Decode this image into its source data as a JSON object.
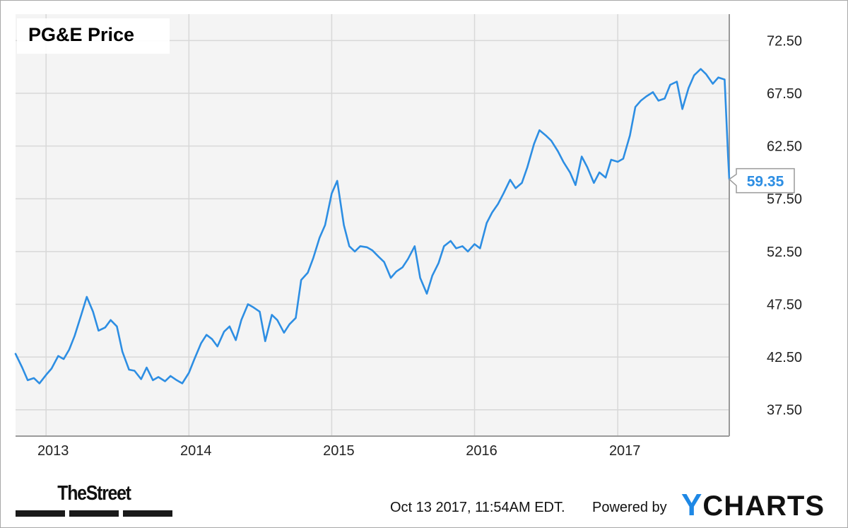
{
  "chart_data": {
    "type": "line",
    "title": "PG&E Price",
    "xlabel": "",
    "ylabel": "",
    "x_tick_labels": [
      "2013",
      "2014",
      "2015",
      "2016",
      "2017"
    ],
    "y_tick_labels": [
      "72.50",
      "67.50",
      "62.50",
      "57.50",
      "52.50",
      "47.50",
      "42.50",
      "37.50"
    ],
    "y_ticks": [
      72.5,
      67.5,
      62.5,
      57.5,
      52.5,
      47.5,
      42.5,
      37.5
    ],
    "ylim": [
      35.0,
      75.0
    ],
    "xlim": [
      "2012-10-15",
      "2017-10-13"
    ],
    "grid": true,
    "line_color": "#2d8ee3",
    "last_value_label": "59.35",
    "series": [
      {
        "x": [
          "2012-10-15",
          "2012-11-01",
          "2012-11-15",
          "2012-12-01",
          "2012-12-15",
          "2013-01-01",
          "2013-01-15",
          "2013-02-01",
          "2013-02-15",
          "2013-03-01",
          "2013-03-15",
          "2013-04-01",
          "2013-04-15",
          "2013-05-01",
          "2013-05-15",
          "2013-06-01",
          "2013-06-15",
          "2013-07-01",
          "2013-07-15",
          "2013-08-01",
          "2013-08-15",
          "2013-09-01",
          "2013-09-15",
          "2013-10-01",
          "2013-10-15",
          "2013-11-01",
          "2013-11-15",
          "2013-12-01",
          "2013-12-15",
          "2014-01-01",
          "2014-01-15",
          "2014-02-01",
          "2014-02-15",
          "2014-03-01",
          "2014-03-15",
          "2014-04-01",
          "2014-04-15",
          "2014-05-01",
          "2014-05-15",
          "2014-06-01",
          "2014-06-15",
          "2014-07-01",
          "2014-07-15",
          "2014-08-01",
          "2014-08-15",
          "2014-09-01",
          "2014-09-15",
          "2014-10-01",
          "2014-10-15",
          "2014-11-01",
          "2014-11-15",
          "2014-12-01",
          "2014-12-15",
          "2015-01-01",
          "2015-01-15",
          "2015-02-01",
          "2015-02-15",
          "2015-03-01",
          "2015-03-15",
          "2015-04-01",
          "2015-04-15",
          "2015-05-01",
          "2015-05-15",
          "2015-06-01",
          "2015-06-15",
          "2015-07-01",
          "2015-07-15",
          "2015-08-01",
          "2015-08-15",
          "2015-09-01",
          "2015-09-15",
          "2015-10-01",
          "2015-10-15",
          "2015-11-01",
          "2015-11-15",
          "2015-12-01",
          "2015-12-15",
          "2016-01-01",
          "2016-01-15",
          "2016-02-01",
          "2016-02-15",
          "2016-03-01",
          "2016-03-15",
          "2016-04-01",
          "2016-04-15",
          "2016-05-01",
          "2016-05-15",
          "2016-06-01",
          "2016-06-15",
          "2016-07-01",
          "2016-07-15",
          "2016-08-01",
          "2016-08-15",
          "2016-09-01",
          "2016-09-15",
          "2016-10-01",
          "2016-10-15",
          "2016-11-01",
          "2016-11-15",
          "2016-12-01",
          "2016-12-15",
          "2017-01-01",
          "2017-01-15",
          "2017-02-01",
          "2017-02-15",
          "2017-03-01",
          "2017-03-15",
          "2017-04-01",
          "2017-04-15",
          "2017-05-01",
          "2017-05-15",
          "2017-06-01",
          "2017-06-15",
          "2017-07-01",
          "2017-07-15",
          "2017-08-01",
          "2017-08-15",
          "2017-09-01",
          "2017-09-15",
          "2017-10-01",
          "2017-10-10",
          "2017-10-13"
        ],
        "y": [
          42.8,
          41.5,
          40.3,
          40.5,
          40.0,
          40.8,
          41.4,
          42.6,
          42.3,
          43.2,
          44.5,
          46.5,
          48.2,
          46.8,
          45.0,
          45.3,
          46.0,
          45.4,
          43.0,
          41.3,
          41.2,
          40.4,
          41.5,
          40.3,
          40.6,
          40.2,
          40.7,
          40.3,
          40.0,
          41.0,
          42.3,
          43.8,
          44.6,
          44.2,
          43.5,
          44.9,
          45.4,
          44.1,
          46.0,
          47.5,
          47.2,
          46.8,
          44.0,
          46.5,
          46.0,
          44.8,
          45.6,
          46.2,
          49.8,
          50.5,
          51.9,
          53.8,
          55.0,
          58.0,
          59.2,
          55.0,
          53.0,
          52.5,
          53.0,
          52.9,
          52.6,
          52.0,
          51.5,
          50.0,
          50.6,
          51.0,
          51.8,
          53.0,
          50.0,
          48.5,
          50.2,
          51.4,
          53.0,
          53.5,
          52.8,
          53.0,
          52.5,
          53.2,
          52.8,
          55.2,
          56.2,
          57.0,
          58.0,
          59.3,
          58.5,
          59.0,
          60.5,
          62.7,
          64.0,
          63.5,
          63.0,
          62.0,
          61.0,
          60.0,
          58.8,
          61.5,
          60.5,
          59.0,
          60.0,
          59.5,
          61.2,
          61.0,
          61.3,
          63.5,
          66.2,
          66.8,
          67.2,
          67.6,
          66.8,
          67.0,
          68.3,
          68.6,
          66.0,
          68.0,
          69.2,
          69.8,
          69.3,
          68.4,
          69.0,
          68.8,
          61.5,
          59.35
        ]
      }
    ]
  },
  "footer": {
    "brand_left": "TheStreet",
    "timestamp": "Oct 13 2017, 11:54AM EDT.",
    "powered_by": "Powered by",
    "brand_right_y": "Y",
    "brand_right_rest": "CHARTS"
  }
}
